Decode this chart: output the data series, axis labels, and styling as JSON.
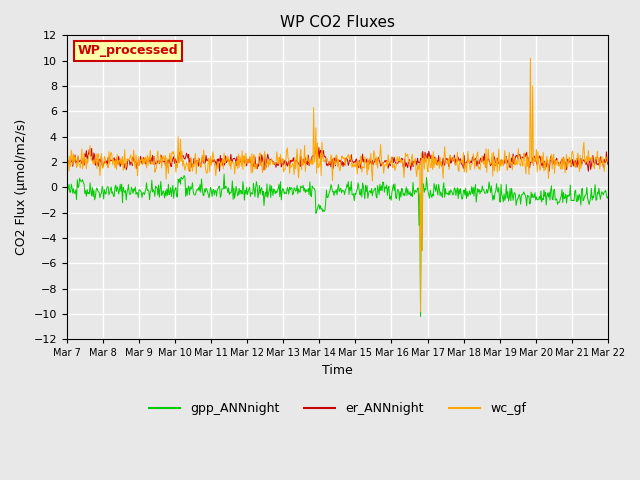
{
  "title": "WP CO2 Fluxes",
  "xlabel": "Time",
  "ylabel": "CO2 Flux (μmol/m2/s)",
  "ylim": [
    -12,
    12
  ],
  "yticks": [
    -12,
    -10,
    -8,
    -6,
    -4,
    -2,
    0,
    2,
    4,
    6,
    8,
    10,
    12
  ],
  "background_color": "#e8e8e8",
  "plot_bg_color": "#e8e8e8",
  "grid_color": "white",
  "series": {
    "gpp_ANNnight": {
      "color": "#00cc00",
      "lw": 0.7
    },
    "er_ANNnight": {
      "color": "#cc0000",
      "lw": 0.7
    },
    "wc_gf": {
      "color": "#ffa500",
      "lw": 0.7
    }
  },
  "watermark": "WP_processed",
  "watermark_bg": "#ffffaa",
  "watermark_border": "#cc0000",
  "n_days": 15,
  "start_day": 7,
  "end_day": 22,
  "points_per_day": 48,
  "seed": 42
}
